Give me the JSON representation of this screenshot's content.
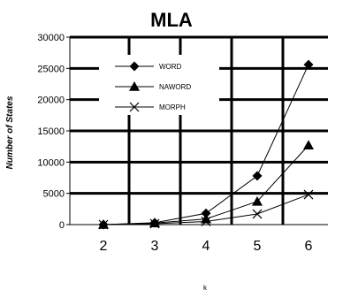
{
  "chart_data": {
    "type": "line",
    "title": "MLA",
    "xlabel": "k",
    "ylabel": "Number of States",
    "x": [
      2,
      3,
      4,
      5,
      6
    ],
    "x_ticks": [
      "2",
      "3",
      "4",
      "5",
      "6"
    ],
    "ylim": [
      0,
      30000
    ],
    "y_ticks": [
      "0",
      "5000",
      "10000",
      "15000",
      "20000",
      "25000",
      "30000"
    ],
    "y_tick_values": [
      0,
      5000,
      10000,
      15000,
      20000,
      25000,
      30000
    ],
    "grid": true,
    "legend_position": "top-left",
    "series": [
      {
        "name": "WORD",
        "marker": "diamond",
        "color": "#000000",
        "values": [
          0,
          300,
          1800,
          7800,
          25600
        ]
      },
      {
        "name": "NAWORD",
        "marker": "triangle",
        "color": "#000000",
        "values": [
          0,
          250,
          900,
          3700,
          12700
        ]
      },
      {
        "name": "MORPH",
        "marker": "x",
        "color": "#000000",
        "values": [
          0,
          150,
          500,
          1700,
          4800
        ]
      }
    ]
  }
}
